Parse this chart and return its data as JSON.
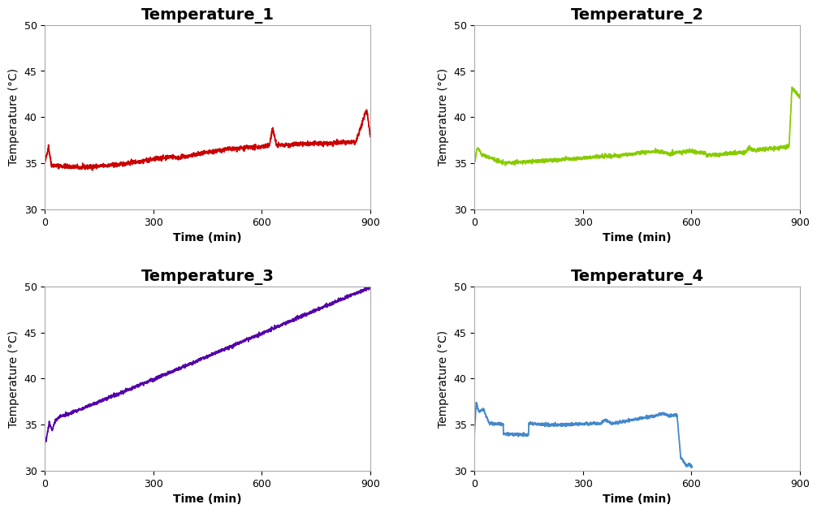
{
  "titles": [
    "Temperature_1",
    "Temperature_2",
    "Temperature_3",
    "Temperature_4"
  ],
  "colors": [
    "#cc0000",
    "#88cc00",
    "#5500aa",
    "#4488cc"
  ],
  "xlabel": "Time (min)",
  "ylabel": "Temperature (°C)",
  "ylim": [
    30,
    50
  ],
  "xlim": [
    0,
    900
  ],
  "xticks": [
    0,
    300,
    600,
    900
  ],
  "yticks": [
    30,
    35,
    40,
    45,
    50
  ],
  "title_fontsize": 14,
  "label_fontsize": 10,
  "tick_fontsize": 9,
  "linewidth": 1.3,
  "background_color": "#ffffff"
}
